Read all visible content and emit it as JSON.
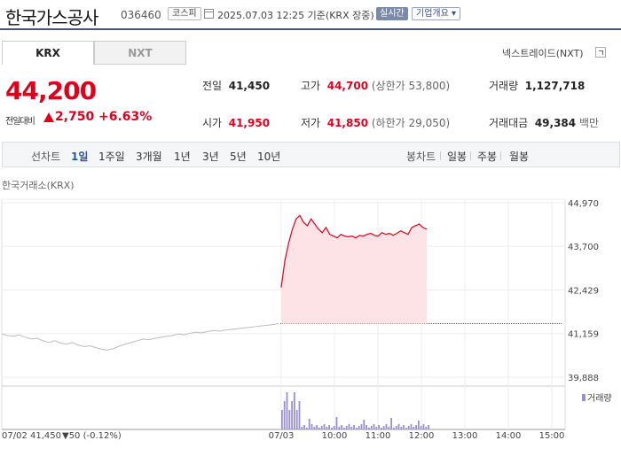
{
  "header": {
    "company": "한국가스공사",
    "code": "036460",
    "market_badge": "코스피",
    "datetime": "2025.07.03 12:25 기준(KRX 장중)",
    "live_label": "실시간",
    "info_label": "기업개요 ▾"
  },
  "tabs": {
    "krx": "KRX",
    "nxt": "NXT"
  },
  "nextrade_link": "넥스트레이드(NXT)",
  "price": {
    "current": "44,200",
    "change_label": "전일대비",
    "change": "2,750",
    "change_pct": "+6.63%"
  },
  "stats": {
    "prev_close": {
      "label": "전일",
      "value": "41,450"
    },
    "high": {
      "label": "고가",
      "value": "44,700",
      "note": "(상한가 53,800)"
    },
    "volume": {
      "label": "거래량",
      "value": "1,127,718"
    },
    "open": {
      "label": "시가",
      "value": "41,950"
    },
    "low": {
      "label": "저가",
      "value": "41,850",
      "note": "(하한가 29,050)"
    },
    "amount": {
      "label": "거래대금",
      "value": "49,384",
      "unit": "백만"
    }
  },
  "period_bar": {
    "line_chart_label": "선차트",
    "periods": [
      "1일",
      "1주일",
      "3개월",
      "1년",
      "3년",
      "5년",
      "10년"
    ],
    "selected": "1일",
    "candle_label": "봉차트",
    "candles": [
      "일봉",
      "주봉",
      "월봉"
    ]
  },
  "chart_data": {
    "type": "line",
    "exchange_label": "한국거래소(KRX)",
    "y_ticks": [
      "44,970",
      "43,700",
      "42,429",
      "41,159",
      "39,888"
    ],
    "ylim": [
      39888,
      44970
    ],
    "x_ticks": [
      "07/03",
      "10:00",
      "11:00",
      "12:00",
      "13:00",
      "14:00",
      "15:00"
    ],
    "prev_day_label": "07/02",
    "prev_day_close": "41,450",
    "prev_day_change": "▼50",
    "prev_day_change_pct": "(-0.12%)",
    "volume_legend": "거래량",
    "previous_day_series": [
      41150,
      41100,
      41080,
      41120,
      41050,
      41000,
      41020,
      40950,
      40900,
      40950,
      40880,
      40850,
      40900,
      40820,
      40780,
      40800,
      40750,
      40700,
      40680,
      40720,
      40800,
      40850,
      40900,
      40950,
      41000,
      40980,
      41020,
      41050,
      41080,
      41100,
      41150,
      41120,
      41170,
      41200,
      41180,
      41220,
      41250,
      41230,
      41260,
      41280,
      41300,
      41320,
      41340,
      41360,
      41380,
      41400,
      41420,
      41450
    ],
    "today_series": [
      42500,
      43300,
      43800,
      44200,
      44500,
      44600,
      44400,
      44300,
      44500,
      44350,
      44200,
      44100,
      44250,
      44050,
      44000,
      43950,
      44050,
      44000,
      43980,
      44000,
      43950,
      44020,
      44000,
      44050,
      44080,
      44020,
      44000,
      44100,
      44050,
      44080,
      44020,
      44080,
      44150,
      44100,
      44050,
      44250,
      44300,
      44350,
      44250,
      44200
    ]
  }
}
